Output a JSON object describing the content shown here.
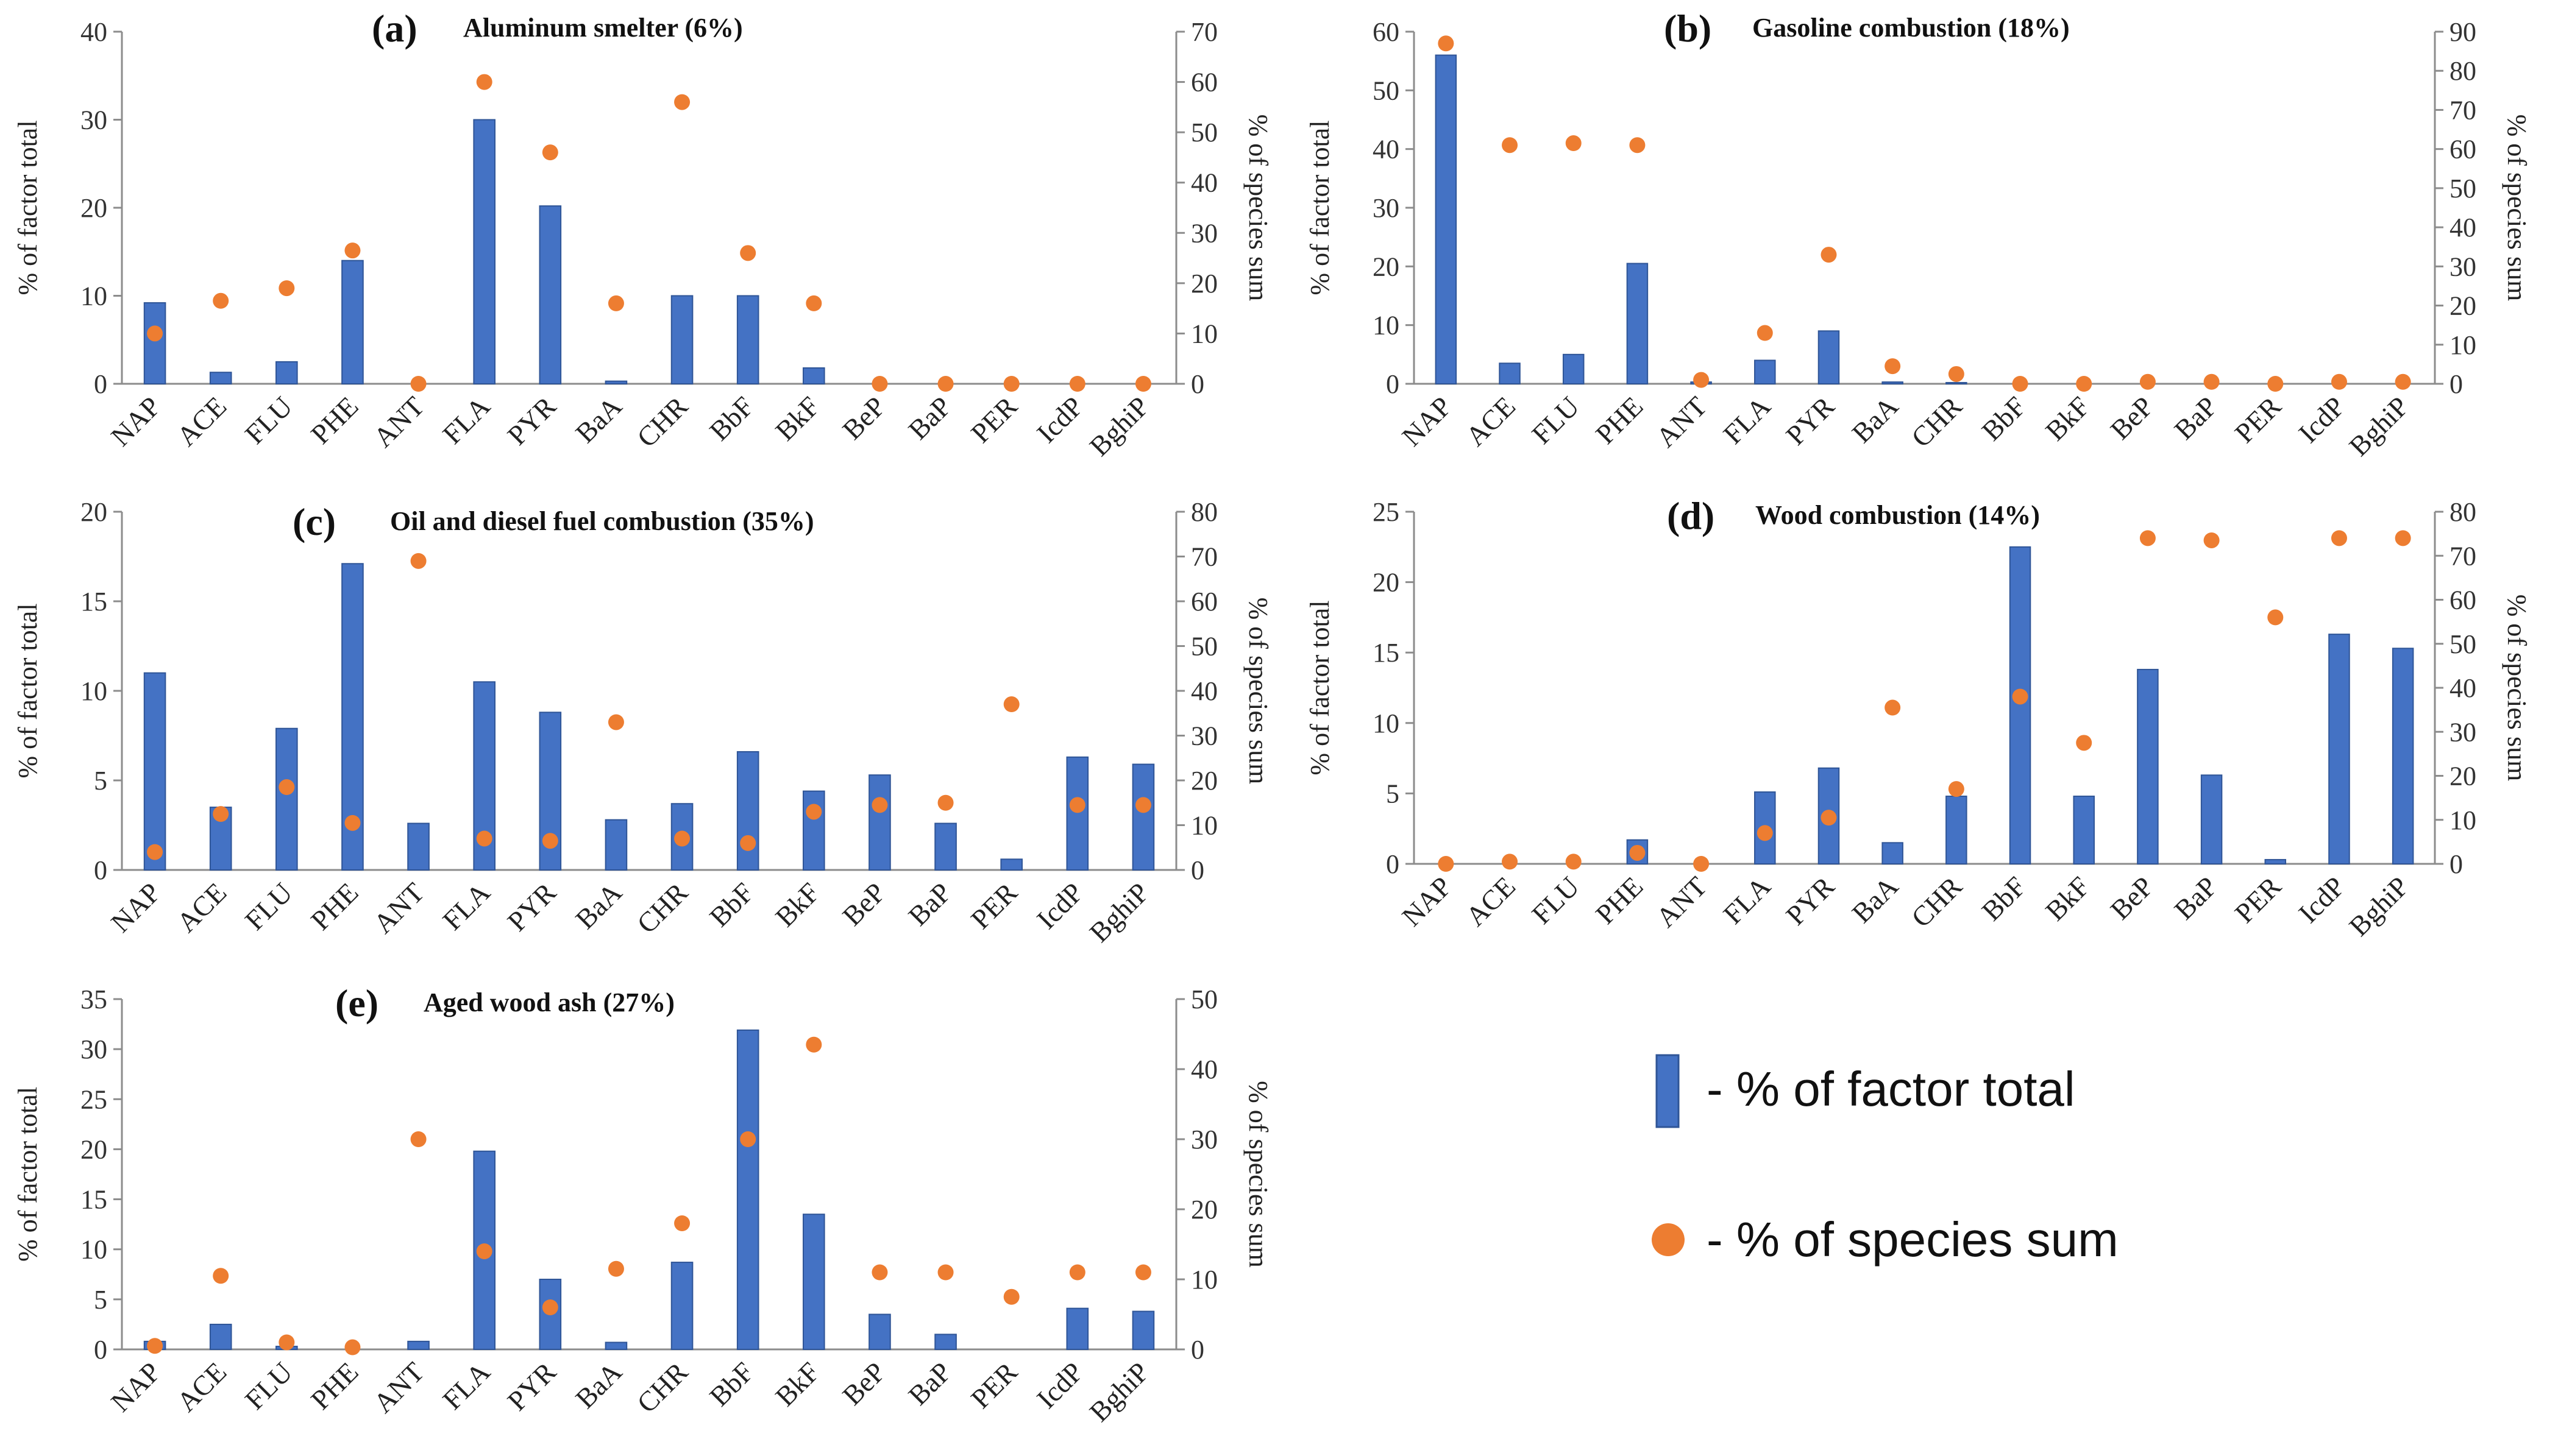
{
  "colors": {
    "bar": "#4472C4",
    "bar_edge": "#2F5597",
    "dot": "#ED7D31",
    "axis": "#8C8C8C"
  },
  "legend": {
    "bar_label": "- % of factor total",
    "dot_label": "- % of species sum"
  },
  "chart_data": [
    {
      "type": "bar",
      "letter": "(a)",
      "title": "Aluminum  smelter (6%)",
      "ylabel": "% of factor total",
      "y2label": "% of species sum",
      "ylim": [
        0,
        40
      ],
      "yticks": [
        0,
        10,
        20,
        30,
        40
      ],
      "y2lim": [
        0,
        70
      ],
      "y2ticks": [
        0,
        10,
        20,
        30,
        40,
        50,
        60,
        70
      ],
      "categories": [
        "NAP",
        "ACE",
        "FLU",
        "PHE",
        "ANT",
        "FLA",
        "PYR",
        "BaA",
        "CHR",
        "BbF",
        "BkF",
        "BeP",
        "BaP",
        "PER",
        "IcdP",
        "BghiP"
      ],
      "series": [
        {
          "name": "% of factor total",
          "axis": "left",
          "kind": "bar",
          "values": [
            9.2,
            1.3,
            2.5,
            14.0,
            0,
            30.0,
            20.2,
            0.3,
            10.0,
            10.0,
            1.8,
            0,
            0,
            0,
            0,
            0
          ]
        },
        {
          "name": "% of species sum",
          "axis": "right",
          "kind": "dot",
          "values": [
            10,
            16.5,
            19,
            26.5,
            0,
            60,
            46,
            16,
            56,
            26,
            16,
            0,
            0,
            0,
            0,
            0
          ]
        }
      ]
    },
    {
      "type": "bar",
      "letter": "(b)",
      "title": "Gasoline combustion (18%)",
      "ylabel": "% of factor total",
      "y2label": "% of species sum",
      "ylim": [
        0,
        60
      ],
      "yticks": [
        0,
        10,
        20,
        30,
        40,
        50,
        60
      ],
      "y2lim": [
        0,
        90
      ],
      "y2ticks": [
        0,
        10,
        20,
        30,
        40,
        50,
        60,
        70,
        80,
        90
      ],
      "categories": [
        "NAP",
        "ACE",
        "FLU",
        "PHE",
        "ANT",
        "FLA",
        "PYR",
        "BaA",
        "CHR",
        "BbF",
        "BkF",
        "BeP",
        "BaP",
        "PER",
        "IcdP",
        "BghiP"
      ],
      "series": [
        {
          "name": "% of factor total",
          "axis": "left",
          "kind": "bar",
          "values": [
            56.0,
            3.5,
            5.0,
            20.5,
            0.3,
            4.0,
            9.0,
            0.3,
            0.2,
            0,
            0,
            0,
            0,
            0,
            0,
            0
          ]
        },
        {
          "name": "% of species sum",
          "axis": "right",
          "kind": "dot",
          "values": [
            87,
            61,
            61.5,
            61,
            1,
            13,
            33,
            4.5,
            2.5,
            0,
            0,
            0.5,
            0.5,
            0,
            0.5,
            0.5
          ]
        }
      ]
    },
    {
      "type": "bar",
      "letter": "(c)",
      "title": "Oil and diesel fuel combustion (35%)",
      "ylabel": "% of factor total",
      "y2label": "% of species sum",
      "ylim": [
        0,
        20
      ],
      "yticks": [
        0,
        5,
        10,
        15,
        20
      ],
      "y2lim": [
        0,
        80
      ],
      "y2ticks": [
        0,
        10,
        20,
        30,
        40,
        50,
        60,
        70,
        80
      ],
      "categories": [
        "NAP",
        "ACE",
        "FLU",
        "PHE",
        "ANT",
        "FLA",
        "PYR",
        "BaA",
        "CHR",
        "BbF",
        "BkF",
        "BeP",
        "BaP",
        "PER",
        "IcdP",
        "BghiP"
      ],
      "series": [
        {
          "name": "% of factor total",
          "axis": "left",
          "kind": "bar",
          "values": [
            11.0,
            3.5,
            7.9,
            17.1,
            2.6,
            10.5,
            8.8,
            2.8,
            3.7,
            6.6,
            4.4,
            5.3,
            2.6,
            0.6,
            6.3,
            5.9
          ]
        },
        {
          "name": "% of species sum",
          "axis": "right",
          "kind": "dot",
          "values": [
            4,
            12.5,
            18.5,
            10.5,
            69,
            7,
            6.5,
            33,
            7,
            6,
            13,
            14.5,
            15,
            37,
            14.5,
            14.5
          ]
        }
      ]
    },
    {
      "type": "bar",
      "letter": "(d)",
      "title": "Wood combustion (14%)",
      "ylabel": "% of factor total",
      "y2label": "% of species sum",
      "ylim": [
        0,
        25
      ],
      "yticks": [
        0,
        5,
        10,
        15,
        20,
        25
      ],
      "y2lim": [
        0,
        80
      ],
      "y2ticks": [
        0,
        10,
        20,
        30,
        40,
        50,
        60,
        70,
        80
      ],
      "categories": [
        "NAP",
        "ACE",
        "FLU",
        "PHE",
        "ANT",
        "FLA",
        "PYR",
        "BaA",
        "CHR",
        "BbF",
        "BkF",
        "BeP",
        "BaP",
        "PER",
        "IcdP",
        "BghiP"
      ],
      "series": [
        {
          "name": "% of factor total",
          "axis": "left",
          "kind": "bar",
          "values": [
            0,
            0,
            0,
            1.7,
            0,
            5.1,
            6.8,
            1.5,
            4.8,
            22.5,
            4.8,
            13.8,
            6.3,
            0.3,
            16.3,
            15.3
          ]
        },
        {
          "name": "% of species sum",
          "axis": "right",
          "kind": "dot",
          "values": [
            0,
            0.5,
            0.5,
            2.5,
            0,
            7,
            10.5,
            35.5,
            17,
            38,
            27.5,
            74,
            73.5,
            56,
            74,
            74
          ]
        }
      ]
    },
    {
      "type": "bar",
      "letter": "(e)",
      "title": "Aged wood ash (27%)",
      "ylabel": "% of factor total",
      "y2label": "% of species sum",
      "ylim": [
        0,
        35
      ],
      "yticks": [
        0,
        5,
        10,
        15,
        20,
        25,
        30,
        35
      ],
      "y2lim": [
        0,
        50
      ],
      "y2ticks": [
        0,
        10,
        20,
        30,
        40,
        50
      ],
      "categories": [
        "NAP",
        "ACE",
        "FLU",
        "PHE",
        "ANT",
        "FLA",
        "PYR",
        "BaA",
        "CHR",
        "BbF",
        "BkF",
        "BeP",
        "BaP",
        "PER",
        "IcdP",
        "BghiP"
      ],
      "series": [
        {
          "name": "% of factor total",
          "axis": "left",
          "kind": "bar",
          "values": [
            0.8,
            2.5,
            0.3,
            0,
            0.8,
            19.8,
            7.0,
            0.7,
            8.7,
            31.9,
            13.5,
            3.5,
            1.5,
            0,
            4.1,
            3.8
          ]
        },
        {
          "name": "% of species sum",
          "axis": "right",
          "kind": "dot",
          "values": [
            0.5,
            10.5,
            1,
            0.3,
            30,
            14,
            6,
            11.5,
            18,
            30,
            43.5,
            11,
            11,
            7.5,
            11,
            11
          ]
        }
      ]
    }
  ]
}
